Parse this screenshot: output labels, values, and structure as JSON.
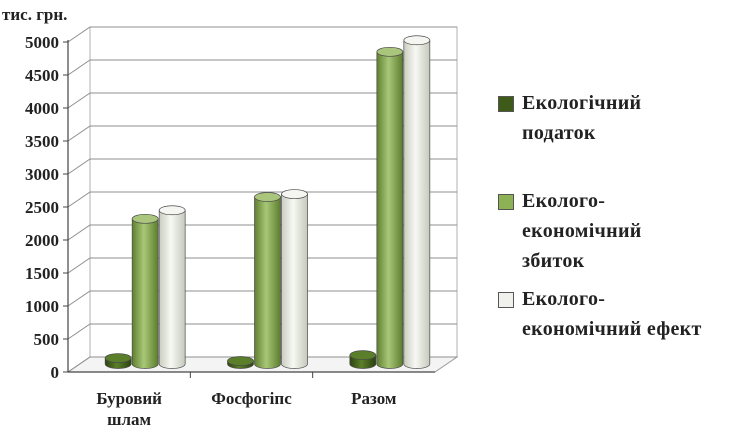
{
  "chart_data": {
    "type": "bar",
    "unit_label": "тис. грн.",
    "categories": [
      "Буровий\nшлам",
      "Фосфогіпс",
      "Разом"
    ],
    "series": [
      {
        "name": "Екологічний\nподаток",
        "values": [
          90,
          45,
          135
        ],
        "color": "#3d5a19"
      },
      {
        "name": "Еколого-\nекономічний\nзбиток",
        "values": [
          2200,
          2530,
          4730
        ],
        "color": "#7a9c45"
      },
      {
        "name": "Еколого-\nекономічний ефект",
        "values": [
          2330,
          2575,
          4905
        ],
        "color": "#e3e6dc"
      }
    ],
    "yticks": [
      0,
      500,
      1000,
      1500,
      2000,
      2500,
      3000,
      3500,
      4000,
      4500,
      5000
    ],
    "ylim": [
      0,
      5000
    ]
  }
}
